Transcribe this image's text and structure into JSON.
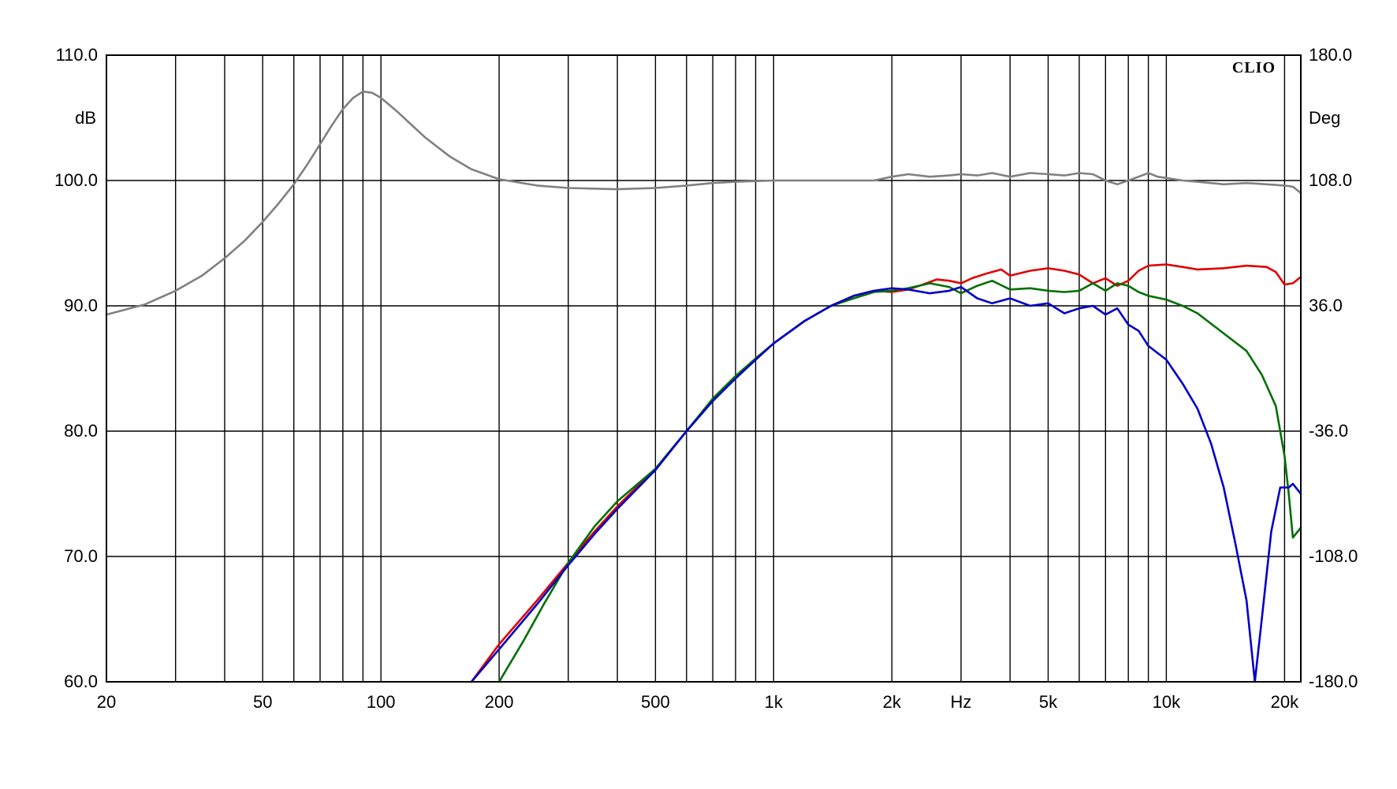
{
  "chart_data": {
    "type": "line",
    "brand": "CLIO",
    "x_scale": "log",
    "xlim": [
      20,
      22000
    ],
    "ylim": [
      60,
      110
    ],
    "y2lim": [
      -180,
      180
    ],
    "ylabel": "dB",
    "y2label": "Deg",
    "xlabel": "Hz",
    "grid": true,
    "x_ticks": [
      {
        "v": 20,
        "label": "20"
      },
      {
        "v": 50,
        "label": "50"
      },
      {
        "v": 100,
        "label": "100"
      },
      {
        "v": 200,
        "label": "200"
      },
      {
        "v": 500,
        "label": "500"
      },
      {
        "v": 1000,
        "label": "1k"
      },
      {
        "v": 2000,
        "label": "2k"
      },
      {
        "v": 5000,
        "label": "5k"
      },
      {
        "v": 10000,
        "label": "10k"
      },
      {
        "v": 20000,
        "label": "20k"
      }
    ],
    "x_unit_at": 3000,
    "x_gridlines": [
      20,
      30,
      40,
      50,
      60,
      70,
      80,
      90,
      100,
      200,
      300,
      400,
      500,
      600,
      700,
      800,
      900,
      1000,
      2000,
      3000,
      4000,
      5000,
      6000,
      7000,
      8000,
      9000,
      10000,
      20000
    ],
    "y_ticks": [
      {
        "v": 110,
        "label": "110.0"
      },
      {
        "v": 100,
        "label": "100.0"
      },
      {
        "v": 90,
        "label": "90.0"
      },
      {
        "v": 80,
        "label": "80.0"
      },
      {
        "v": 70,
        "label": "70.0"
      },
      {
        "v": 60,
        "label": "60.0"
      }
    ],
    "y2_ticks": [
      {
        "v": 180,
        "label": "180.0"
      },
      {
        "v": 108,
        "label": "108.0"
      },
      {
        "v": 36,
        "label": "36.0"
      },
      {
        "v": -36,
        "label": "-36.0"
      },
      {
        "v": -108,
        "label": "-108.0"
      },
      {
        "v": -180,
        "label": "-180.0"
      }
    ],
    "series": [
      {
        "color": "#808080",
        "points": [
          [
            20,
            89.3
          ],
          [
            25,
            90.1
          ],
          [
            30,
            91.2
          ],
          [
            35,
            92.4
          ],
          [
            40,
            93.8
          ],
          [
            45,
            95.2
          ],
          [
            50,
            96.7
          ],
          [
            55,
            98.2
          ],
          [
            60,
            99.7
          ],
          [
            65,
            101.3
          ],
          [
            70,
            102.9
          ],
          [
            75,
            104.4
          ],
          [
            80,
            105.7
          ],
          [
            85,
            106.6
          ],
          [
            90,
            107.1
          ],
          [
            95,
            107.0
          ],
          [
            100,
            106.6
          ],
          [
            110,
            105.5
          ],
          [
            120,
            104.4
          ],
          [
            130,
            103.4
          ],
          [
            150,
            101.9
          ],
          [
            170,
            100.9
          ],
          [
            200,
            100.1
          ],
          [
            250,
            99.6
          ],
          [
            300,
            99.4
          ],
          [
            400,
            99.3
          ],
          [
            500,
            99.4
          ],
          [
            600,
            99.6
          ],
          [
            700,
            99.8
          ],
          [
            800,
            99.9
          ],
          [
            1000,
            100.0
          ],
          [
            1500,
            100.0
          ],
          [
            1800,
            100.0
          ],
          [
            2000,
            100.3
          ],
          [
            2200,
            100.5
          ],
          [
            2500,
            100.3
          ],
          [
            2800,
            100.4
          ],
          [
            3000,
            100.5
          ],
          [
            3300,
            100.4
          ],
          [
            3600,
            100.6
          ],
          [
            4000,
            100.3
          ],
          [
            4500,
            100.6
          ],
          [
            5000,
            100.5
          ],
          [
            5500,
            100.4
          ],
          [
            6000,
            100.6
          ],
          [
            6500,
            100.5
          ],
          [
            7000,
            100.0
          ],
          [
            7500,
            99.7
          ],
          [
            8000,
            100.0
          ],
          [
            8500,
            100.3
          ],
          [
            9000,
            100.6
          ],
          [
            9500,
            100.3
          ],
          [
            10000,
            100.2
          ],
          [
            11000,
            100.0
          ],
          [
            12000,
            99.9
          ],
          [
            14000,
            99.7
          ],
          [
            16000,
            99.8
          ],
          [
            18000,
            99.7
          ],
          [
            20000,
            99.6
          ],
          [
            21000,
            99.5
          ],
          [
            22000,
            99.0
          ]
        ]
      },
      {
        "color": "#e00000",
        "points": [
          [
            170,
            60.0
          ],
          [
            200,
            63.0
          ],
          [
            250,
            66.5
          ],
          [
            300,
            69.5
          ],
          [
            350,
            72.0
          ],
          [
            400,
            74.0
          ],
          [
            500,
            77.0
          ],
          [
            600,
            80.0
          ],
          [
            700,
            82.5
          ],
          [
            800,
            84.3
          ],
          [
            900,
            85.8
          ],
          [
            1000,
            87.0
          ],
          [
            1200,
            88.8
          ],
          [
            1400,
            90.0
          ],
          [
            1600,
            90.8
          ],
          [
            1800,
            91.2
          ],
          [
            2000,
            91.1
          ],
          [
            2200,
            91.3
          ],
          [
            2400,
            91.7
          ],
          [
            2600,
            92.1
          ],
          [
            2800,
            92.0
          ],
          [
            3000,
            91.8
          ],
          [
            3200,
            92.2
          ],
          [
            3500,
            92.6
          ],
          [
            3800,
            92.9
          ],
          [
            4000,
            92.4
          ],
          [
            4500,
            92.8
          ],
          [
            5000,
            93.0
          ],
          [
            5500,
            92.8
          ],
          [
            6000,
            92.5
          ],
          [
            6500,
            91.8
          ],
          [
            7000,
            92.2
          ],
          [
            7500,
            91.6
          ],
          [
            8000,
            92.0
          ],
          [
            8500,
            92.8
          ],
          [
            9000,
            93.2
          ],
          [
            10000,
            93.3
          ],
          [
            11000,
            93.1
          ],
          [
            12000,
            92.9
          ],
          [
            14000,
            93.0
          ],
          [
            16000,
            93.2
          ],
          [
            18000,
            93.1
          ],
          [
            19000,
            92.7
          ],
          [
            20000,
            91.7
          ],
          [
            21000,
            91.8
          ],
          [
            22000,
            92.3
          ]
        ]
      },
      {
        "color": "#007000",
        "points": [
          [
            200,
            60.0
          ],
          [
            230,
            63.2
          ],
          [
            260,
            66.2
          ],
          [
            300,
            69.5
          ],
          [
            350,
            72.4
          ],
          [
            400,
            74.4
          ],
          [
            500,
            77.0
          ],
          [
            600,
            80.0
          ],
          [
            700,
            82.6
          ],
          [
            800,
            84.4
          ],
          [
            900,
            85.8
          ],
          [
            1000,
            87.0
          ],
          [
            1200,
            88.8
          ],
          [
            1400,
            90.0
          ],
          [
            1600,
            90.6
          ],
          [
            1800,
            91.1
          ],
          [
            2000,
            91.2
          ],
          [
            2200,
            91.4
          ],
          [
            2500,
            91.8
          ],
          [
            2800,
            91.5
          ],
          [
            3000,
            91.0
          ],
          [
            3300,
            91.6
          ],
          [
            3600,
            92.0
          ],
          [
            4000,
            91.3
          ],
          [
            4500,
            91.4
          ],
          [
            5000,
            91.2
          ],
          [
            5500,
            91.1
          ],
          [
            6000,
            91.2
          ],
          [
            6500,
            91.8
          ],
          [
            7000,
            91.2
          ],
          [
            7500,
            91.8
          ],
          [
            8000,
            91.6
          ],
          [
            8500,
            91.1
          ],
          [
            9000,
            90.8
          ],
          [
            10000,
            90.5
          ],
          [
            11000,
            90.0
          ],
          [
            12000,
            89.4
          ],
          [
            14000,
            87.8
          ],
          [
            16000,
            86.4
          ],
          [
            17500,
            84.5
          ],
          [
            19000,
            82.0
          ],
          [
            20000,
            78.0
          ],
          [
            20500,
            75.0
          ],
          [
            21000,
            71.5
          ],
          [
            22000,
            72.3
          ]
        ]
      },
      {
        "color": "#0000c8",
        "points": [
          [
            170,
            60.0
          ],
          [
            200,
            62.6
          ],
          [
            250,
            66.2
          ],
          [
            300,
            69.3
          ],
          [
            350,
            71.8
          ],
          [
            400,
            73.8
          ],
          [
            500,
            76.9
          ],
          [
            600,
            80.0
          ],
          [
            700,
            82.4
          ],
          [
            800,
            84.2
          ],
          [
            900,
            85.7
          ],
          [
            1000,
            87.0
          ],
          [
            1200,
            88.8
          ],
          [
            1400,
            90.0
          ],
          [
            1600,
            90.8
          ],
          [
            1800,
            91.2
          ],
          [
            2000,
            91.4
          ],
          [
            2200,
            91.3
          ],
          [
            2500,
            91.0
          ],
          [
            2800,
            91.2
          ],
          [
            3000,
            91.5
          ],
          [
            3300,
            90.6
          ],
          [
            3600,
            90.2
          ],
          [
            4000,
            90.6
          ],
          [
            4500,
            90.0
          ],
          [
            5000,
            90.2
          ],
          [
            5500,
            89.4
          ],
          [
            6000,
            89.8
          ],
          [
            6500,
            90.0
          ],
          [
            7000,
            89.3
          ],
          [
            7500,
            89.8
          ],
          [
            8000,
            88.5
          ],
          [
            8500,
            88.0
          ],
          [
            9000,
            86.8
          ],
          [
            10000,
            85.7
          ],
          [
            11000,
            83.8
          ],
          [
            12000,
            81.8
          ],
          [
            13000,
            79.0
          ],
          [
            14000,
            75.5
          ],
          [
            15000,
            71.0
          ],
          [
            16000,
            66.5
          ],
          [
            16800,
            60.0
          ],
          [
            17500,
            65.0
          ],
          [
            18500,
            72.0
          ],
          [
            19500,
            75.5
          ],
          [
            20500,
            75.5
          ],
          [
            21000,
            75.8
          ],
          [
            22000,
            75.0
          ]
        ]
      }
    ]
  }
}
